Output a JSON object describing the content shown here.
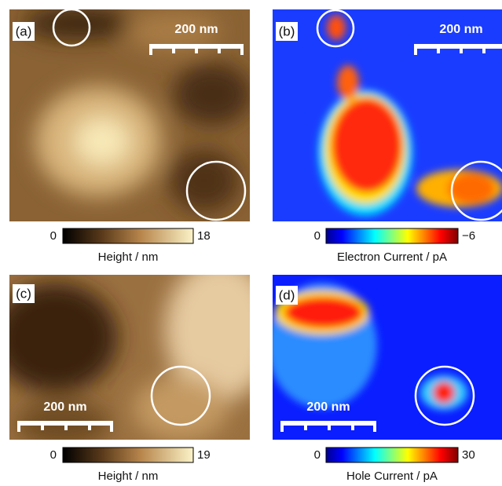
{
  "panels": [
    {
      "label": "(a)",
      "scale_bar": "200 nm",
      "colorbar": {
        "min": "0",
        "max": "18",
        "title": "Height / nm"
      }
    },
    {
      "label": "(b)",
      "scale_bar": "200 nm",
      "colorbar": {
        "min": "0",
        "max": "−6",
        "title": "Electron Current / pA"
      }
    },
    {
      "label": "(c)",
      "scale_bar": "200 nm",
      "colorbar": {
        "min": "0",
        "max": "19",
        "title": "Height / nm"
      }
    },
    {
      "label": "(d)",
      "scale_bar": "200 nm",
      "colorbar": {
        "min": "0",
        "max": "30",
        "title": "Hole Current / pA"
      }
    }
  ]
}
